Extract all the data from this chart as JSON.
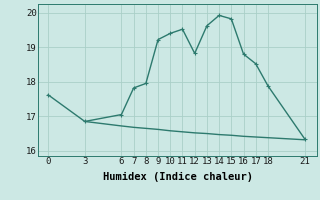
{
  "xlabel": "Humidex (Indice chaleur)",
  "background_color": "#cce8e4",
  "line_color": "#2d7a6e",
  "grid_color": "#aacfc8",
  "upper_x": [
    0,
    3,
    6,
    7,
    8,
    9,
    10,
    11,
    12,
    13,
    14,
    15,
    16,
    17,
    18,
    21
  ],
  "upper_y": [
    17.62,
    16.85,
    17.05,
    17.82,
    17.95,
    19.22,
    19.4,
    19.52,
    18.82,
    19.62,
    19.92,
    19.82,
    18.8,
    18.52,
    17.88,
    16.35
  ],
  "lower_x": [
    3,
    6,
    7,
    8,
    9,
    10,
    11,
    12,
    13,
    14,
    15,
    16,
    17,
    18,
    21
  ],
  "lower_y": [
    16.85,
    16.72,
    16.68,
    16.65,
    16.62,
    16.58,
    16.55,
    16.52,
    16.5,
    16.47,
    16.45,
    16.42,
    16.4,
    16.38,
    16.32
  ],
  "ylim": [
    15.85,
    20.25
  ],
  "yticks": [
    16,
    17,
    18,
    19,
    20
  ],
  "xticks": [
    0,
    3,
    6,
    7,
    8,
    9,
    10,
    11,
    12,
    13,
    14,
    15,
    16,
    17,
    18,
    21
  ],
  "xlim": [
    -0.8,
    22.0
  ],
  "marker_size": 3.0,
  "line_width": 1.0,
  "xlabel_fontsize": 7.5,
  "tick_fontsize": 6.5
}
